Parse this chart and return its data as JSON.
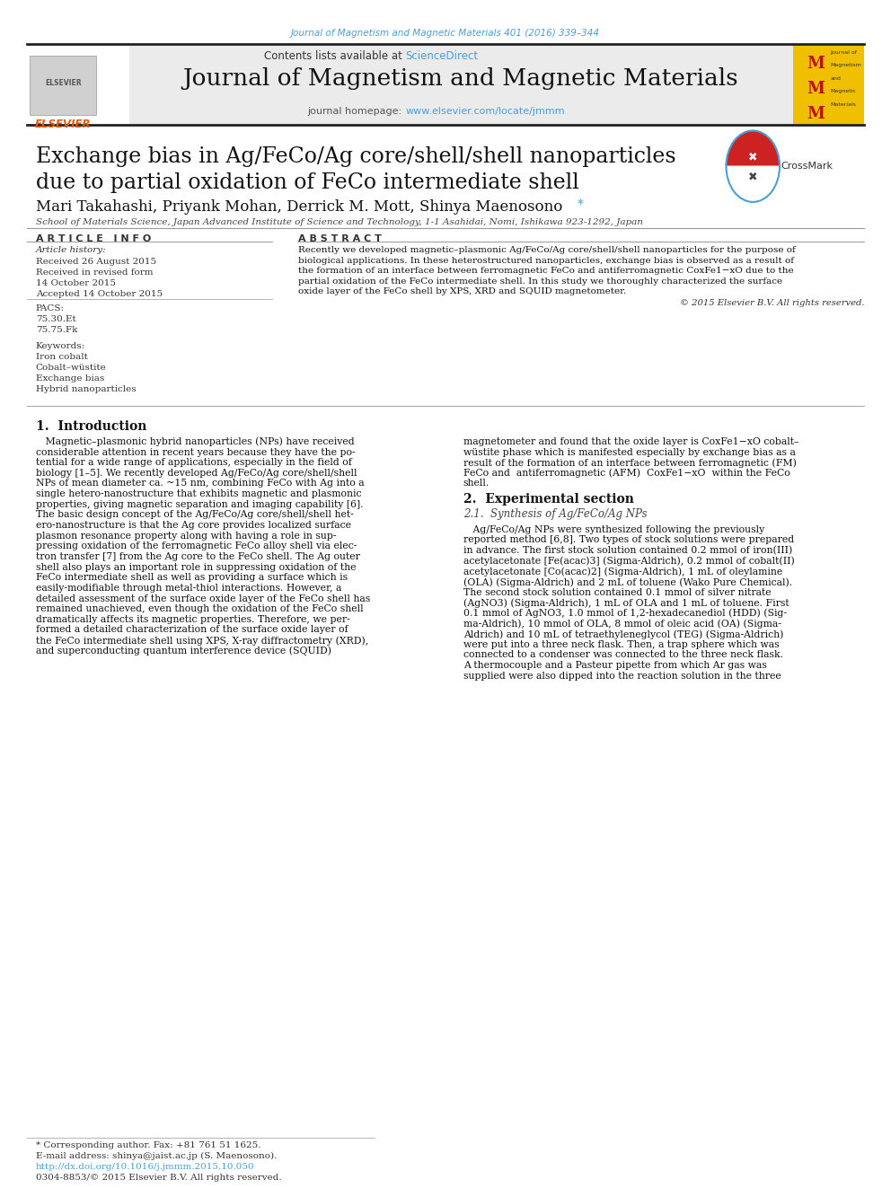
{
  "page_background": "#ffffff",
  "top_journal_ref": "Journal of Magnetism and Magnetic Materials 401 (2016) 339–344",
  "top_journal_ref_color": "#4a9fd4",
  "header_bg": "#e8e8e8",
  "header_sciencedirect_color": "#4a9fd4",
  "journal_title": "Journal of Magnetism and Magnetic Materials",
  "journal_homepage_url": "www.elsevier.com/locate/jmmm",
  "journal_homepage_url_color": "#4a9fd4",
  "paper_title_line1": "Exchange bias in Ag/FeCo/Ag core/shell/shell nanoparticles",
  "paper_title_line2": "due to partial oxidation of FeCo intermediate shell",
  "authors": "Mari Takahashi, Priyank Mohan, Derrick M. Mott, Shinya Maenosono",
  "affiliation": "School of Materials Science, Japan Advanced Institute of Science and Technology, 1-1 Asahidai, Nomi, Ishikawa 923-1292, Japan",
  "article_info_header": "A R T I C L E   I N F O",
  "abstract_header": "A B S T R A C T",
  "article_history_label": "Article history:",
  "received1": "Received 26 August 2015",
  "received_revised": "Received in revised form",
  "revised_date": "14 October 2015",
  "accepted": "Accepted 14 October 2015",
  "pacs_label": "PACS:",
  "pacs1": "75.30.Et",
  "pacs2": "75.75.Fk",
  "keywords_label": "Keywords:",
  "keyword1": "Iron cobalt",
  "keyword2": "Cobalt–wüstite",
  "keyword3": "Exchange bias",
  "keyword4": "Hybrid nanoparticles",
  "copyright": "© 2015 Elsevier B.V. All rights reserved.",
  "section1_title": "1.  Introduction",
  "section2_title": "2.  Experimental section",
  "section21_title": "2.1.  Synthesis of Ag/FeCo/Ag NPs",
  "footnote_asterisk": "* Corresponding author. Fax: +81 761 51 1625.",
  "footnote_email": "E-mail address: shinya@jaist.ac.jp (S. Maenosono).",
  "footnote_doi": "http://dx.doi.org/10.1016/j.jmmm.2015.10.050",
  "footnote_doi_color": "#4a9fd4",
  "footnote_issn": "0304-8853/© 2015 Elsevier B.V. All rights reserved.",
  "link_color": "#4a9fd4",
  "abstract_lines": [
    "Recently we developed magnetic–plasmonic Ag/FeCo/Ag core/shell/shell nanoparticles for the purpose of",
    "biological applications. In these heterostructured nanoparticles, exchange bias is observed as a result of",
    "the formation of an interface between ferromagnetic FeCo and antiferromagnetic CoxFe1−xO due to the",
    "partial oxidation of the FeCo intermediate shell. In this study we thoroughly characterized the surface",
    "oxide layer of the FeCo shell by XPS, XRD and SQUID magnetometer."
  ],
  "intro_left_lines": [
    "   Magnetic–plasmonic hybrid nanoparticles (NPs) have received",
    "considerable attention in recent years because they have the po-",
    "tential for a wide range of applications, especially in the field of",
    "biology [1–5]. We recently developed Ag/FeCo/Ag core/shell/shell",
    "NPs of mean diameter ca. ~15 nm, combining FeCo with Ag into a",
    "single hetero-nanostructure that exhibits magnetic and plasmonic",
    "properties, giving magnetic separation and imaging capability [6].",
    "The basic design concept of the Ag/FeCo/Ag core/shell/shell het-",
    "ero-nanostructure is that the Ag core provides localized surface",
    "plasmon resonance property along with having a role in sup-",
    "pressing oxidation of the ferromagnetic FeCo alloy shell via elec-",
    "tron transfer [7] from the Ag core to the FeCo shell. The Ag outer",
    "shell also plays an important role in suppressing oxidation of the",
    "FeCo intermediate shell as well as providing a surface which is",
    "easily-modifiable through metal-thiol interactions. However, a",
    "detailed assessment of the surface oxide layer of the FeCo shell has",
    "remained unachieved, even though the oxidation of the FeCo shell",
    "dramatically affects its magnetic properties. Therefore, we per-",
    "formed a detailed characterization of the surface oxide layer of",
    "the FeCo intermediate shell using XPS, X-ray diffractometry (XRD),",
    "and superconducting quantum interference device (SQUID)"
  ],
  "intro_right_lines": [
    "magnetometer and found that the oxide layer is CoxFe1−xO cobalt–",
    "wüstite phase which is manifested especially by exchange bias as a",
    "result of the formation of an interface between ferromagnetic (FM)",
    "FeCo and  antiferromagnetic (AFM)  CoxFe1−xO  within the FeCo",
    "shell."
  ],
  "exp_lines": [
    "   Ag/FeCo/Ag NPs were synthesized following the previously",
    "reported method [6,8]. Two types of stock solutions were prepared",
    "in advance. The first stock solution contained 0.2 mmol of iron(III)",
    "acetylacetonate [Fe(acac)3] (Sigma-Aldrich), 0.2 mmol of cobalt(II)",
    "acetylacetonate [Co(acac)2] (Sigma-Aldrich), 1 mL of oleylamine",
    "(OLA) (Sigma-Aldrich) and 2 mL of toluene (Wako Pure Chemical).",
    "The second stock solution contained 0.1 mmol of silver nitrate",
    "(AgNO3) (Sigma-Aldrich), 1 mL of OLA and 1 mL of toluene. First",
    "0.1 mmol of AgNO3, 1.0 mmol of 1,2-hexadecanediol (HDD) (Sig-",
    "ma-Aldrich), 10 mmol of OLA, 8 mmol of oleic acid (OA) (Sigma-",
    "Aldrich) and 10 mL of tetraethyleneglycol (TEG) (Sigma-Aldrich)",
    "were put into a three neck flask. Then, a trap sphere which was",
    "connected to a condenser was connected to the three neck flask.",
    "A thermocouple and a Pasteur pipette from which Ar gas was",
    "supplied were also dipped into the reaction solution in the three"
  ]
}
